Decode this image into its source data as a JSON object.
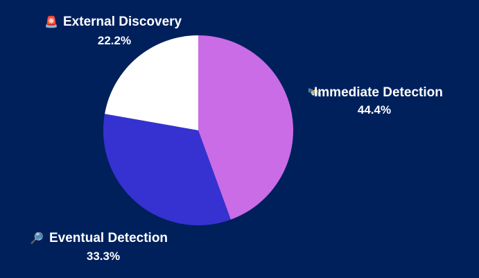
{
  "chart_data": {
    "type": "pie",
    "slices": [
      {
        "label": "Immediate Detection",
        "value": 44.4,
        "value_label": "44.4%",
        "color": "#c96ce6",
        "icon": "satellite-icon",
        "glyph": "🛰️"
      },
      {
        "label": "Eventual Detection",
        "value": 33.3,
        "value_label": "33.3%",
        "color": "#3532d1",
        "icon": "magnifier-icon",
        "glyph": "🔎"
      },
      {
        "label": "External Discovery",
        "value": 22.2,
        "value_label": "22.2%",
        "color": "#ffffff",
        "icon": "siren-icon",
        "glyph": "🚨"
      }
    ]
  },
  "colors": {
    "background": "#00205c",
    "text": "#ffffff"
  }
}
